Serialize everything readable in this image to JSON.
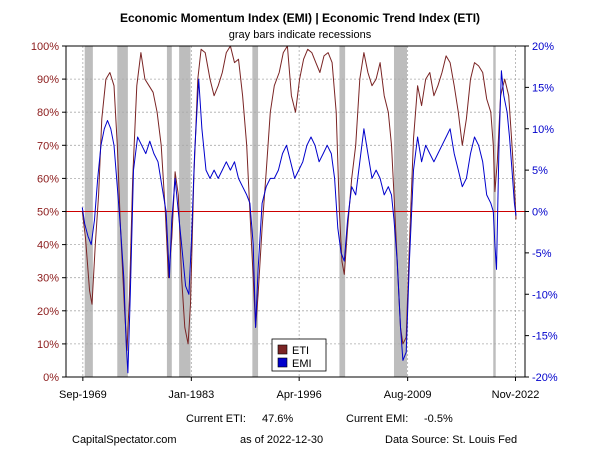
{
  "chart_data": {
    "type": "line",
    "title": "Economic Momentum Index (EMI) | Economic Trend Index (ETI)",
    "subtitle": "gray bars indicate recessions",
    "x_ticks": [
      {
        "label": "Sep-1969",
        "year": 1969.67
      },
      {
        "label": "Jan-1983",
        "year": 1983.0
      },
      {
        "label": "Apr-1996",
        "year": 1996.25
      },
      {
        "label": "Aug-2009",
        "year": 2009.58
      },
      {
        "label": "Nov-2022",
        "year": 2022.83
      }
    ],
    "xlim": [
      1967.6,
      2024.0
    ],
    "y_left": {
      "min": 0,
      "max": 100,
      "ticks": [
        "0%",
        "10%",
        "20%",
        "30%",
        "40%",
        "50%",
        "60%",
        "70%",
        "80%",
        "90%",
        "100%"
      ],
      "color": "#8b1a1a"
    },
    "y_right": {
      "min": -20,
      "max": 20,
      "ticks": [
        "-20%",
        "-15%",
        "-10%",
        "-5%",
        "0%",
        "5%",
        "10%",
        "15%",
        "20%"
      ],
      "color": "#0000cc"
    },
    "reference_line": {
      "axis": "left",
      "value": 50,
      "color": "#cc0000"
    },
    "recessions": [
      [
        1969.9,
        1970.9
      ],
      [
        1973.9,
        1975.2
      ],
      [
        1980.0,
        1980.6
      ],
      [
        1981.5,
        1982.9
      ],
      [
        1990.5,
        1991.2
      ],
      [
        2001.2,
        2001.9
      ],
      [
        2007.9,
        2009.5
      ],
      [
        2020.1,
        2020.4
      ]
    ],
    "grid": true,
    "legend_position": "bottom-center",
    "series": [
      {
        "name": "ETI",
        "axis": "left",
        "color": "#7a2424",
        "points": [
          [
            1969.6,
            50
          ],
          [
            1970.0,
            42
          ],
          [
            1970.5,
            26
          ],
          [
            1970.8,
            22
          ],
          [
            1971.2,
            40
          ],
          [
            1971.6,
            55
          ],
          [
            1972.0,
            78
          ],
          [
            1972.5,
            90
          ],
          [
            1973.0,
            92
          ],
          [
            1973.5,
            88
          ],
          [
            1973.9,
            70
          ],
          [
            1974.3,
            45
          ],
          [
            1974.8,
            20
          ],
          [
            1975.1,
            8
          ],
          [
            1975.4,
            25
          ],
          [
            1975.8,
            60
          ],
          [
            1976.3,
            88
          ],
          [
            1976.8,
            98
          ],
          [
            1977.3,
            90
          ],
          [
            1977.8,
            88
          ],
          [
            1978.3,
            86
          ],
          [
            1978.8,
            80
          ],
          [
            1979.3,
            70
          ],
          [
            1979.8,
            50
          ],
          [
            1980.2,
            30
          ],
          [
            1980.6,
            42
          ],
          [
            1981.0,
            62
          ],
          [
            1981.4,
            55
          ],
          [
            1981.8,
            30
          ],
          [
            1982.2,
            15
          ],
          [
            1982.6,
            10
          ],
          [
            1982.9,
            22
          ],
          [
            1983.3,
            60
          ],
          [
            1983.8,
            90
          ],
          [
            1984.2,
            99
          ],
          [
            1984.7,
            98
          ],
          [
            1985.3,
            90
          ],
          [
            1985.8,
            85
          ],
          [
            1986.3,
            88
          ],
          [
            1986.8,
            92
          ],
          [
            1987.3,
            98
          ],
          [
            1987.8,
            100
          ],
          [
            1988.3,
            95
          ],
          [
            1988.8,
            96
          ],
          [
            1989.3,
            85
          ],
          [
            1989.8,
            70
          ],
          [
            1990.2,
            50
          ],
          [
            1990.6,
            30
          ],
          [
            1990.9,
            15
          ],
          [
            1991.2,
            25
          ],
          [
            1991.7,
            45
          ],
          [
            1992.2,
            62
          ],
          [
            1992.7,
            80
          ],
          [
            1993.2,
            88
          ],
          [
            1993.8,
            92
          ],
          [
            1994.3,
            98
          ],
          [
            1994.8,
            100
          ],
          [
            1995.3,
            85
          ],
          [
            1995.8,
            80
          ],
          [
            1996.3,
            90
          ],
          [
            1996.8,
            96
          ],
          [
            1997.3,
            99
          ],
          [
            1997.8,
            98
          ],
          [
            1998.3,
            95
          ],
          [
            1998.8,
            92
          ],
          [
            1999.3,
            97
          ],
          [
            1999.8,
            98
          ],
          [
            2000.3,
            95
          ],
          [
            2000.8,
            80
          ],
          [
            2001.2,
            50
          ],
          [
            2001.5,
            35
          ],
          [
            2001.8,
            31
          ],
          [
            2002.2,
            45
          ],
          [
            2002.7,
            60
          ],
          [
            2003.2,
            70
          ],
          [
            2003.7,
            90
          ],
          [
            2004.2,
            98
          ],
          [
            2004.7,
            92
          ],
          [
            2005.2,
            88
          ],
          [
            2005.7,
            90
          ],
          [
            2006.2,
            95
          ],
          [
            2006.7,
            85
          ],
          [
            2007.2,
            80
          ],
          [
            2007.6,
            70
          ],
          [
            2007.9,
            55
          ],
          [
            2008.3,
            35
          ],
          [
            2008.7,
            15
          ],
          [
            2009.0,
            10
          ],
          [
            2009.4,
            12
          ],
          [
            2009.8,
            40
          ],
          [
            2010.3,
            72
          ],
          [
            2010.8,
            88
          ],
          [
            2011.3,
            82
          ],
          [
            2011.8,
            90
          ],
          [
            2012.3,
            92
          ],
          [
            2012.8,
            85
          ],
          [
            2013.3,
            88
          ],
          [
            2013.8,
            92
          ],
          [
            2014.3,
            97
          ],
          [
            2014.8,
            95
          ],
          [
            2015.3,
            88
          ],
          [
            2015.8,
            80
          ],
          [
            2016.3,
            70
          ],
          [
            2016.8,
            78
          ],
          [
            2017.3,
            90
          ],
          [
            2017.8,
            95
          ],
          [
            2018.3,
            94
          ],
          [
            2018.8,
            92
          ],
          [
            2019.3,
            84
          ],
          [
            2019.8,
            80
          ],
          [
            2020.1,
            70
          ],
          [
            2020.3,
            56
          ],
          [
            2020.6,
            65
          ],
          [
            2021.0,
            85
          ],
          [
            2021.5,
            90
          ],
          [
            2022.0,
            85
          ],
          [
            2022.4,
            70
          ],
          [
            2022.7,
            58
          ],
          [
            2022.9,
            47.6
          ]
        ]
      },
      {
        "name": "EMI",
        "axis": "right",
        "color": "#0000cc",
        "points": [
          [
            1969.6,
            0.5
          ],
          [
            1969.9,
            -1.5
          ],
          [
            1970.3,
            -3
          ],
          [
            1970.7,
            -4
          ],
          [
            1971.1,
            -1
          ],
          [
            1971.5,
            4
          ],
          [
            1971.9,
            8
          ],
          [
            1972.3,
            10
          ],
          [
            1972.7,
            11
          ],
          [
            1973.1,
            10
          ],
          [
            1973.5,
            8
          ],
          [
            1973.9,
            3
          ],
          [
            1974.3,
            -2
          ],
          [
            1974.7,
            -8
          ],
          [
            1975.0,
            -16
          ],
          [
            1975.2,
            -19.5
          ],
          [
            1975.5,
            -10
          ],
          [
            1975.9,
            5
          ],
          [
            1976.4,
            9
          ],
          [
            1976.9,
            8
          ],
          [
            1977.4,
            7
          ],
          [
            1977.9,
            8.5
          ],
          [
            1978.4,
            7
          ],
          [
            1978.9,
            6
          ],
          [
            1979.4,
            3
          ],
          [
            1979.9,
            0
          ],
          [
            1980.3,
            -8
          ],
          [
            1980.6,
            -1
          ],
          [
            1981.0,
            4
          ],
          [
            1981.4,
            0
          ],
          [
            1981.8,
            -4
          ],
          [
            1982.3,
            -9
          ],
          [
            1982.7,
            -10
          ],
          [
            1983.0,
            -4
          ],
          [
            1983.4,
            7
          ],
          [
            1983.9,
            16
          ],
          [
            1984.3,
            10
          ],
          [
            1984.8,
            5
          ],
          [
            1985.3,
            4
          ],
          [
            1985.8,
            5
          ],
          [
            1986.3,
            4
          ],
          [
            1986.8,
            5
          ],
          [
            1987.3,
            6
          ],
          [
            1987.8,
            5
          ],
          [
            1988.3,
            6
          ],
          [
            1988.8,
            4
          ],
          [
            1989.3,
            3
          ],
          [
            1989.8,
            2
          ],
          [
            1990.2,
            1
          ],
          [
            1990.6,
            -4
          ],
          [
            1990.9,
            -14
          ],
          [
            1991.2,
            -7
          ],
          [
            1991.7,
            1
          ],
          [
            1992.2,
            3
          ],
          [
            1992.7,
            4
          ],
          [
            1993.2,
            4
          ],
          [
            1993.7,
            5
          ],
          [
            1994.2,
            7
          ],
          [
            1994.7,
            8
          ],
          [
            1995.2,
            6
          ],
          [
            1995.7,
            4
          ],
          [
            1996.2,
            5
          ],
          [
            1996.7,
            6
          ],
          [
            1997.2,
            8
          ],
          [
            1997.7,
            9
          ],
          [
            1998.2,
            8
          ],
          [
            1998.7,
            6
          ],
          [
            1999.2,
            7
          ],
          [
            1999.7,
            8
          ],
          [
            2000.2,
            7
          ],
          [
            2000.6,
            4
          ],
          [
            2001.0,
            -2
          ],
          [
            2001.4,
            -5
          ],
          [
            2001.8,
            -6
          ],
          [
            2002.2,
            -1
          ],
          [
            2002.7,
            3
          ],
          [
            2003.2,
            2
          ],
          [
            2003.7,
            6
          ],
          [
            2004.2,
            10
          ],
          [
            2004.7,
            7
          ],
          [
            2005.2,
            4
          ],
          [
            2005.7,
            5
          ],
          [
            2006.2,
            4
          ],
          [
            2006.7,
            2
          ],
          [
            2007.2,
            3
          ],
          [
            2007.6,
            2
          ],
          [
            2007.9,
            -1
          ],
          [
            2008.3,
            -6
          ],
          [
            2008.7,
            -14
          ],
          [
            2009.0,
            -18
          ],
          [
            2009.4,
            -17
          ],
          [
            2009.8,
            -6
          ],
          [
            2010.3,
            5
          ],
          [
            2010.8,
            9
          ],
          [
            2011.3,
            6
          ],
          [
            2011.8,
            8
          ],
          [
            2012.3,
            7
          ],
          [
            2012.8,
            6
          ],
          [
            2013.3,
            7
          ],
          [
            2013.8,
            8
          ],
          [
            2014.3,
            9
          ],
          [
            2014.8,
            10
          ],
          [
            2015.3,
            7
          ],
          [
            2015.8,
            5
          ],
          [
            2016.3,
            3
          ],
          [
            2016.8,
            4
          ],
          [
            2017.3,
            7
          ],
          [
            2017.8,
            9
          ],
          [
            2018.3,
            8
          ],
          [
            2018.8,
            6
          ],
          [
            2019.3,
            2
          ],
          [
            2019.8,
            1
          ],
          [
            2020.1,
            0
          ],
          [
            2020.3,
            -4
          ],
          [
            2020.5,
            -7
          ],
          [
            2020.8,
            8
          ],
          [
            2021.1,
            17
          ],
          [
            2021.4,
            14
          ],
          [
            2021.8,
            12
          ],
          [
            2022.1,
            9
          ],
          [
            2022.4,
            5
          ],
          [
            2022.7,
            1
          ],
          [
            2022.9,
            -0.5
          ]
        ]
      }
    ]
  },
  "footer": {
    "current_eti_label": "Current ETI:",
    "current_eti_value": "47.6%",
    "current_emi_label": "Current EMI:",
    "current_emi_value": "-0.5%",
    "site": "CapitalSpectator.com",
    "as_of": "as of 2022-12-30",
    "source": "Data Source: St. Louis Fed"
  }
}
